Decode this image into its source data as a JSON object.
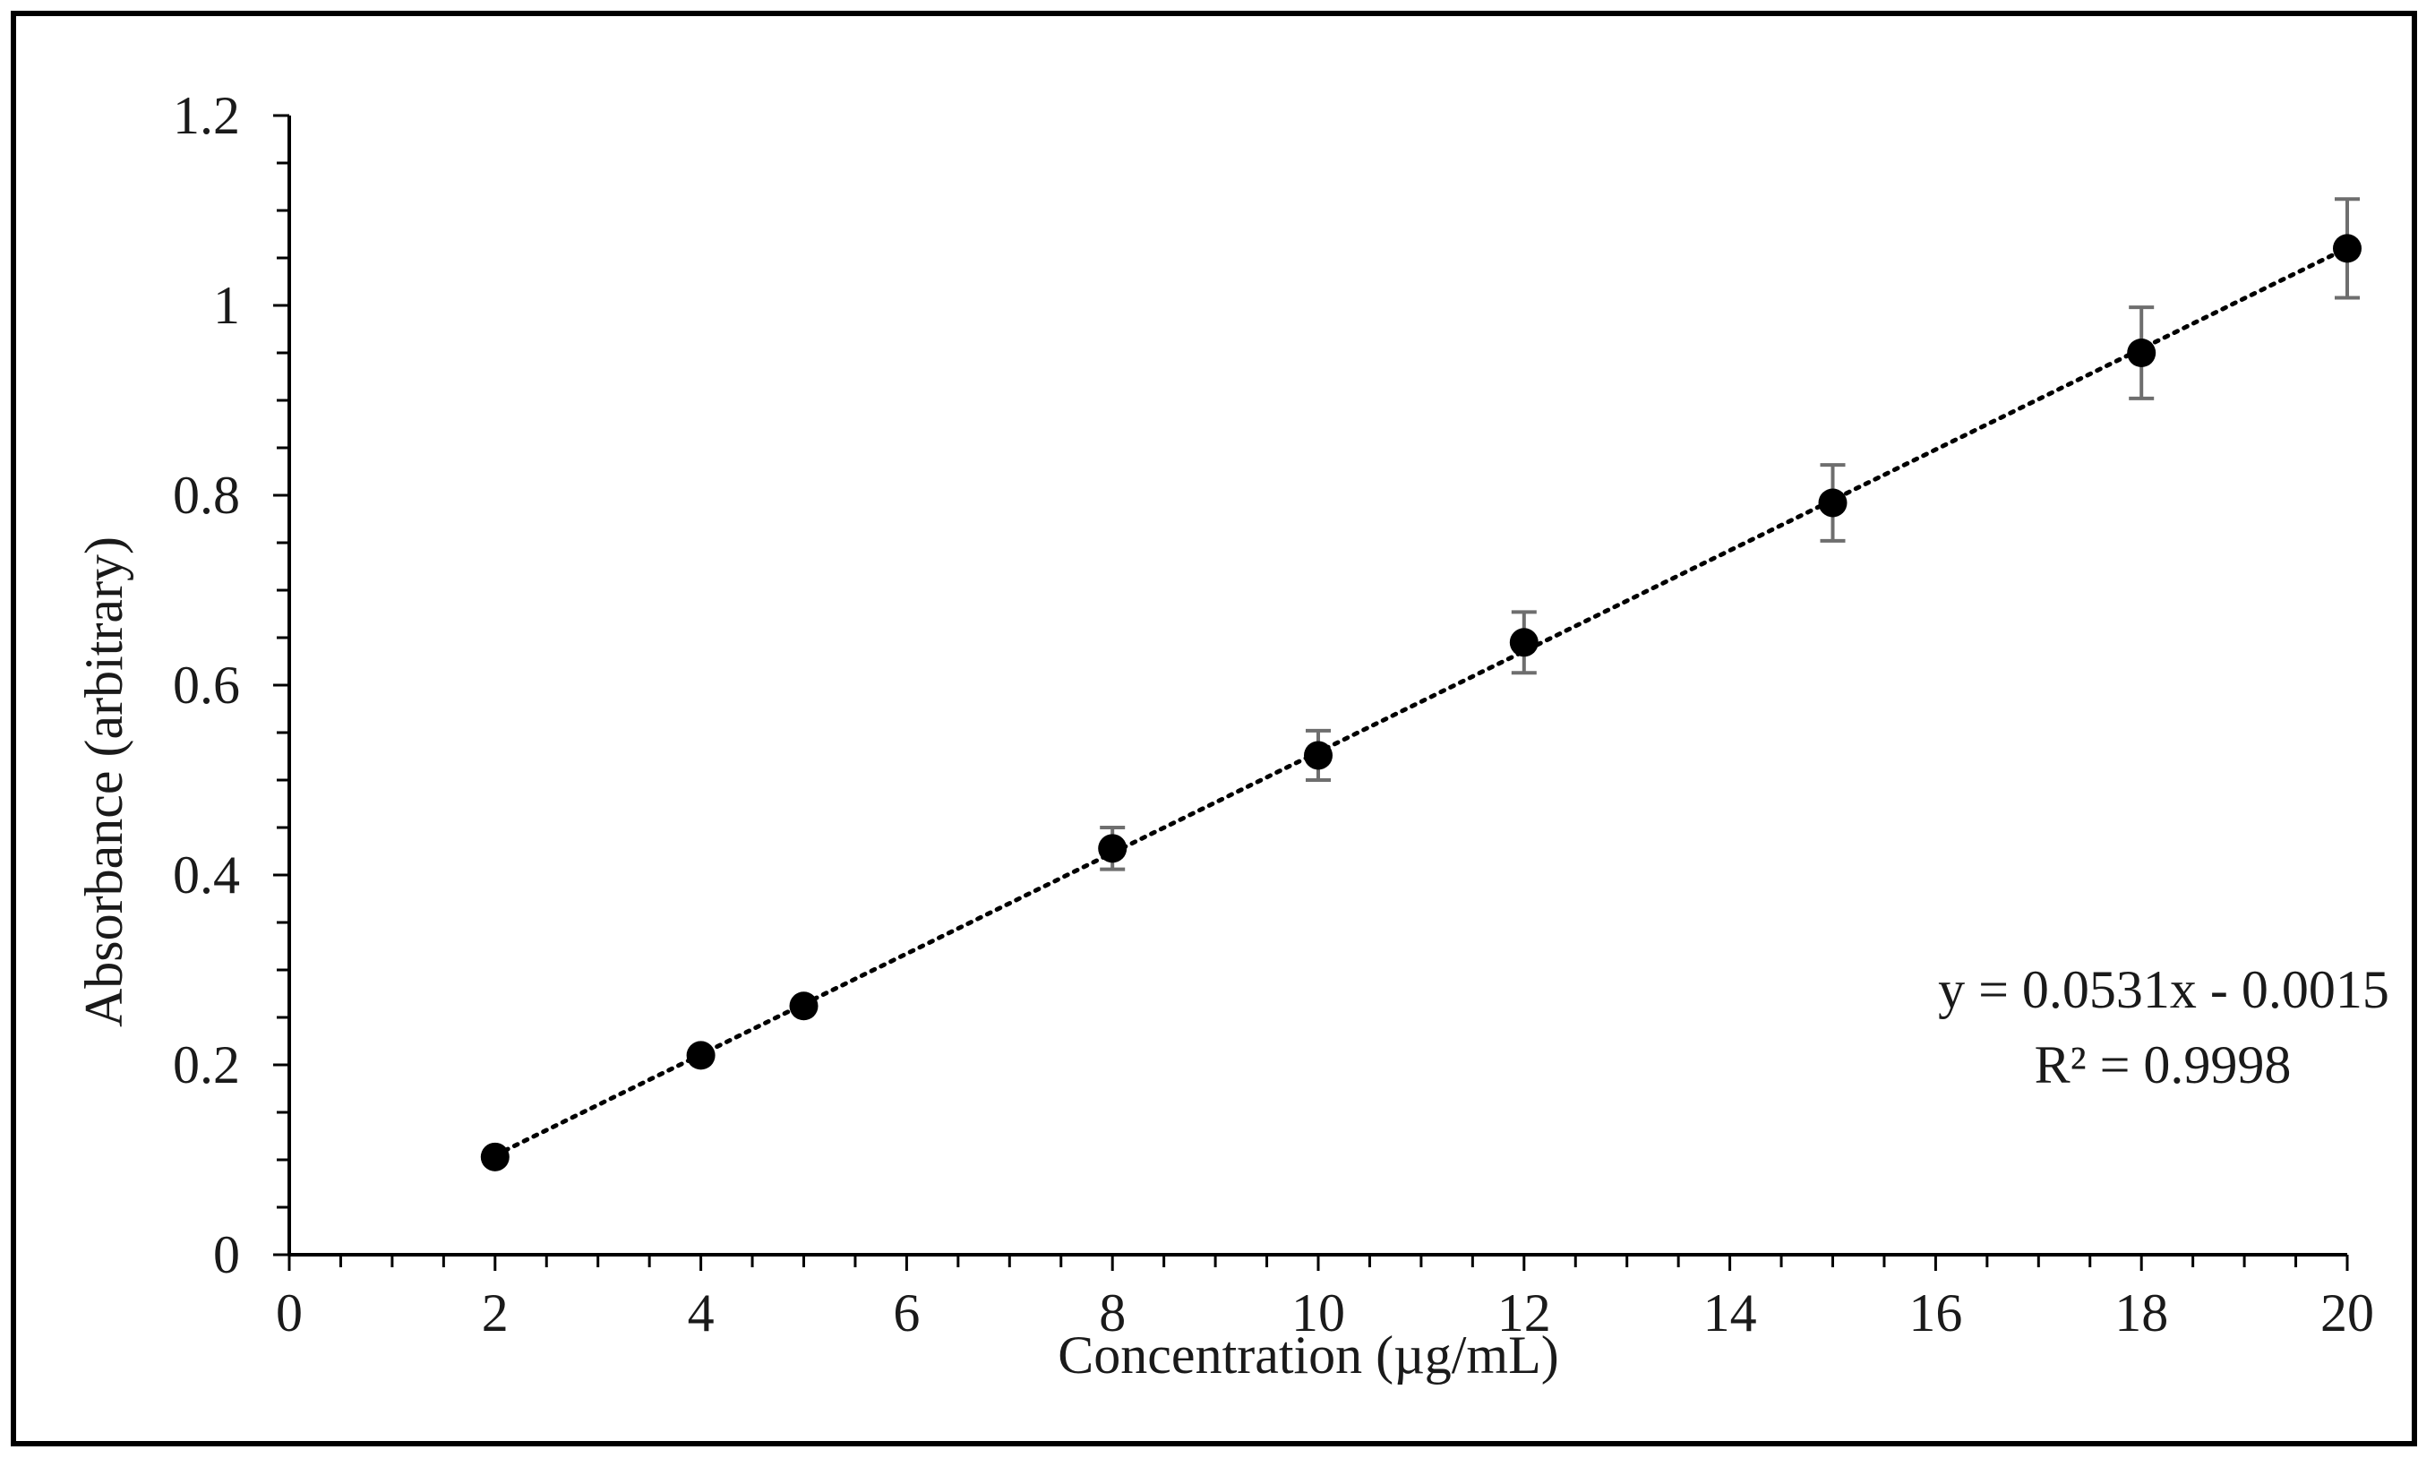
{
  "chart_data": {
    "type": "scatter",
    "title": "",
    "xlabel": "Concentration (µg/mL)",
    "ylabel": "Absorbance  (arbitrary)",
    "xlim": [
      0,
      20
    ],
    "ylim": [
      0,
      1.2
    ],
    "x_major_ticks": [
      0,
      2,
      4,
      6,
      8,
      10,
      12,
      14,
      16,
      18,
      20
    ],
    "x_tick_labels": [
      "0",
      "2",
      "4",
      "6",
      "8",
      "10",
      "12",
      "14",
      "16",
      "18",
      "20"
    ],
    "x_minor_step": 0.5,
    "y_major_ticks": [
      0,
      0.2,
      0.4,
      0.6,
      0.8,
      1.0,
      1.2
    ],
    "y_tick_labels": [
      "0",
      "0.2",
      "0.4",
      "0.6",
      "0.8",
      "1",
      "1.2"
    ],
    "y_minor_step": 0.05,
    "grid": false,
    "series": [
      {
        "name": "Absorbance",
        "x": [
          2,
          4,
          5,
          8,
          10,
          12,
          15,
          18,
          20
        ],
        "y": [
          0.103,
          0.21,
          0.262,
          0.428,
          0.526,
          0.645,
          0.792,
          0.95,
          1.06
        ],
        "error": [
          0.0,
          0.0,
          0.0,
          0.022,
          0.026,
          0.032,
          0.04,
          0.048,
          0.052
        ]
      }
    ],
    "trendline": {
      "type": "linear",
      "slope": 0.0531,
      "intercept": -0.0015,
      "x_range": [
        2,
        20
      ],
      "style": "dotted"
    },
    "annotations": {
      "equation": "y = 0.0531x - 0.0015",
      "r_squared": "R² = 0.9998"
    },
    "colors": {
      "marker": "#000000",
      "errorbar": "#6e6e6e",
      "axis": "#000000"
    }
  }
}
